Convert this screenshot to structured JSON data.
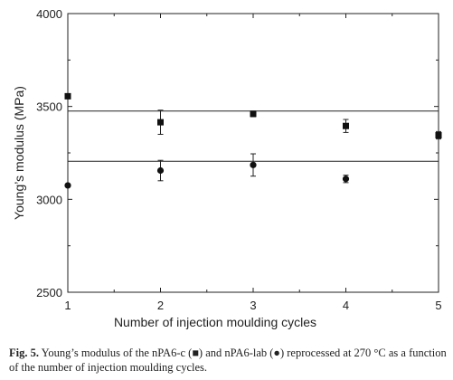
{
  "chart_data": {
    "type": "scatter",
    "xlabel": "Number of injection moulding cycles",
    "ylabel": "Young’s modulus (MPa)",
    "xlim": [
      1,
      5
    ],
    "ylim": [
      2500,
      4000
    ],
    "xticks": [
      1,
      2,
      3,
      4,
      5
    ],
    "yticks": [
      2500,
      3000,
      3500,
      4000
    ],
    "grid": false,
    "series": [
      {
        "marker": "square",
        "x": [
          1,
          2,
          3,
          4,
          5
        ],
        "y": [
          3555,
          3415,
          3460,
          3395,
          3345
        ],
        "err": [
          0,
          65,
          15,
          35,
          20
        ],
        "mean_line": 3475
      },
      {
        "marker": "circle",
        "x": [
          1,
          2,
          3,
          4,
          5
        ],
        "y": [
          3075,
          3155,
          3185,
          3110,
          null
        ],
        "err": [
          0,
          55,
          60,
          20,
          0
        ],
        "mean_line": 3205
      }
    ]
  },
  "caption": {
    "label": "Fig. 5.",
    "text_before": " Young’s modulus of the nPA6-c (",
    "square_symbol": "■",
    "text_middle": ") and nPA6-lab (",
    "circle_symbol": "●",
    "text_after": ") reprocessed at 270 °C as a function of the number of injection moulding cycles."
  }
}
